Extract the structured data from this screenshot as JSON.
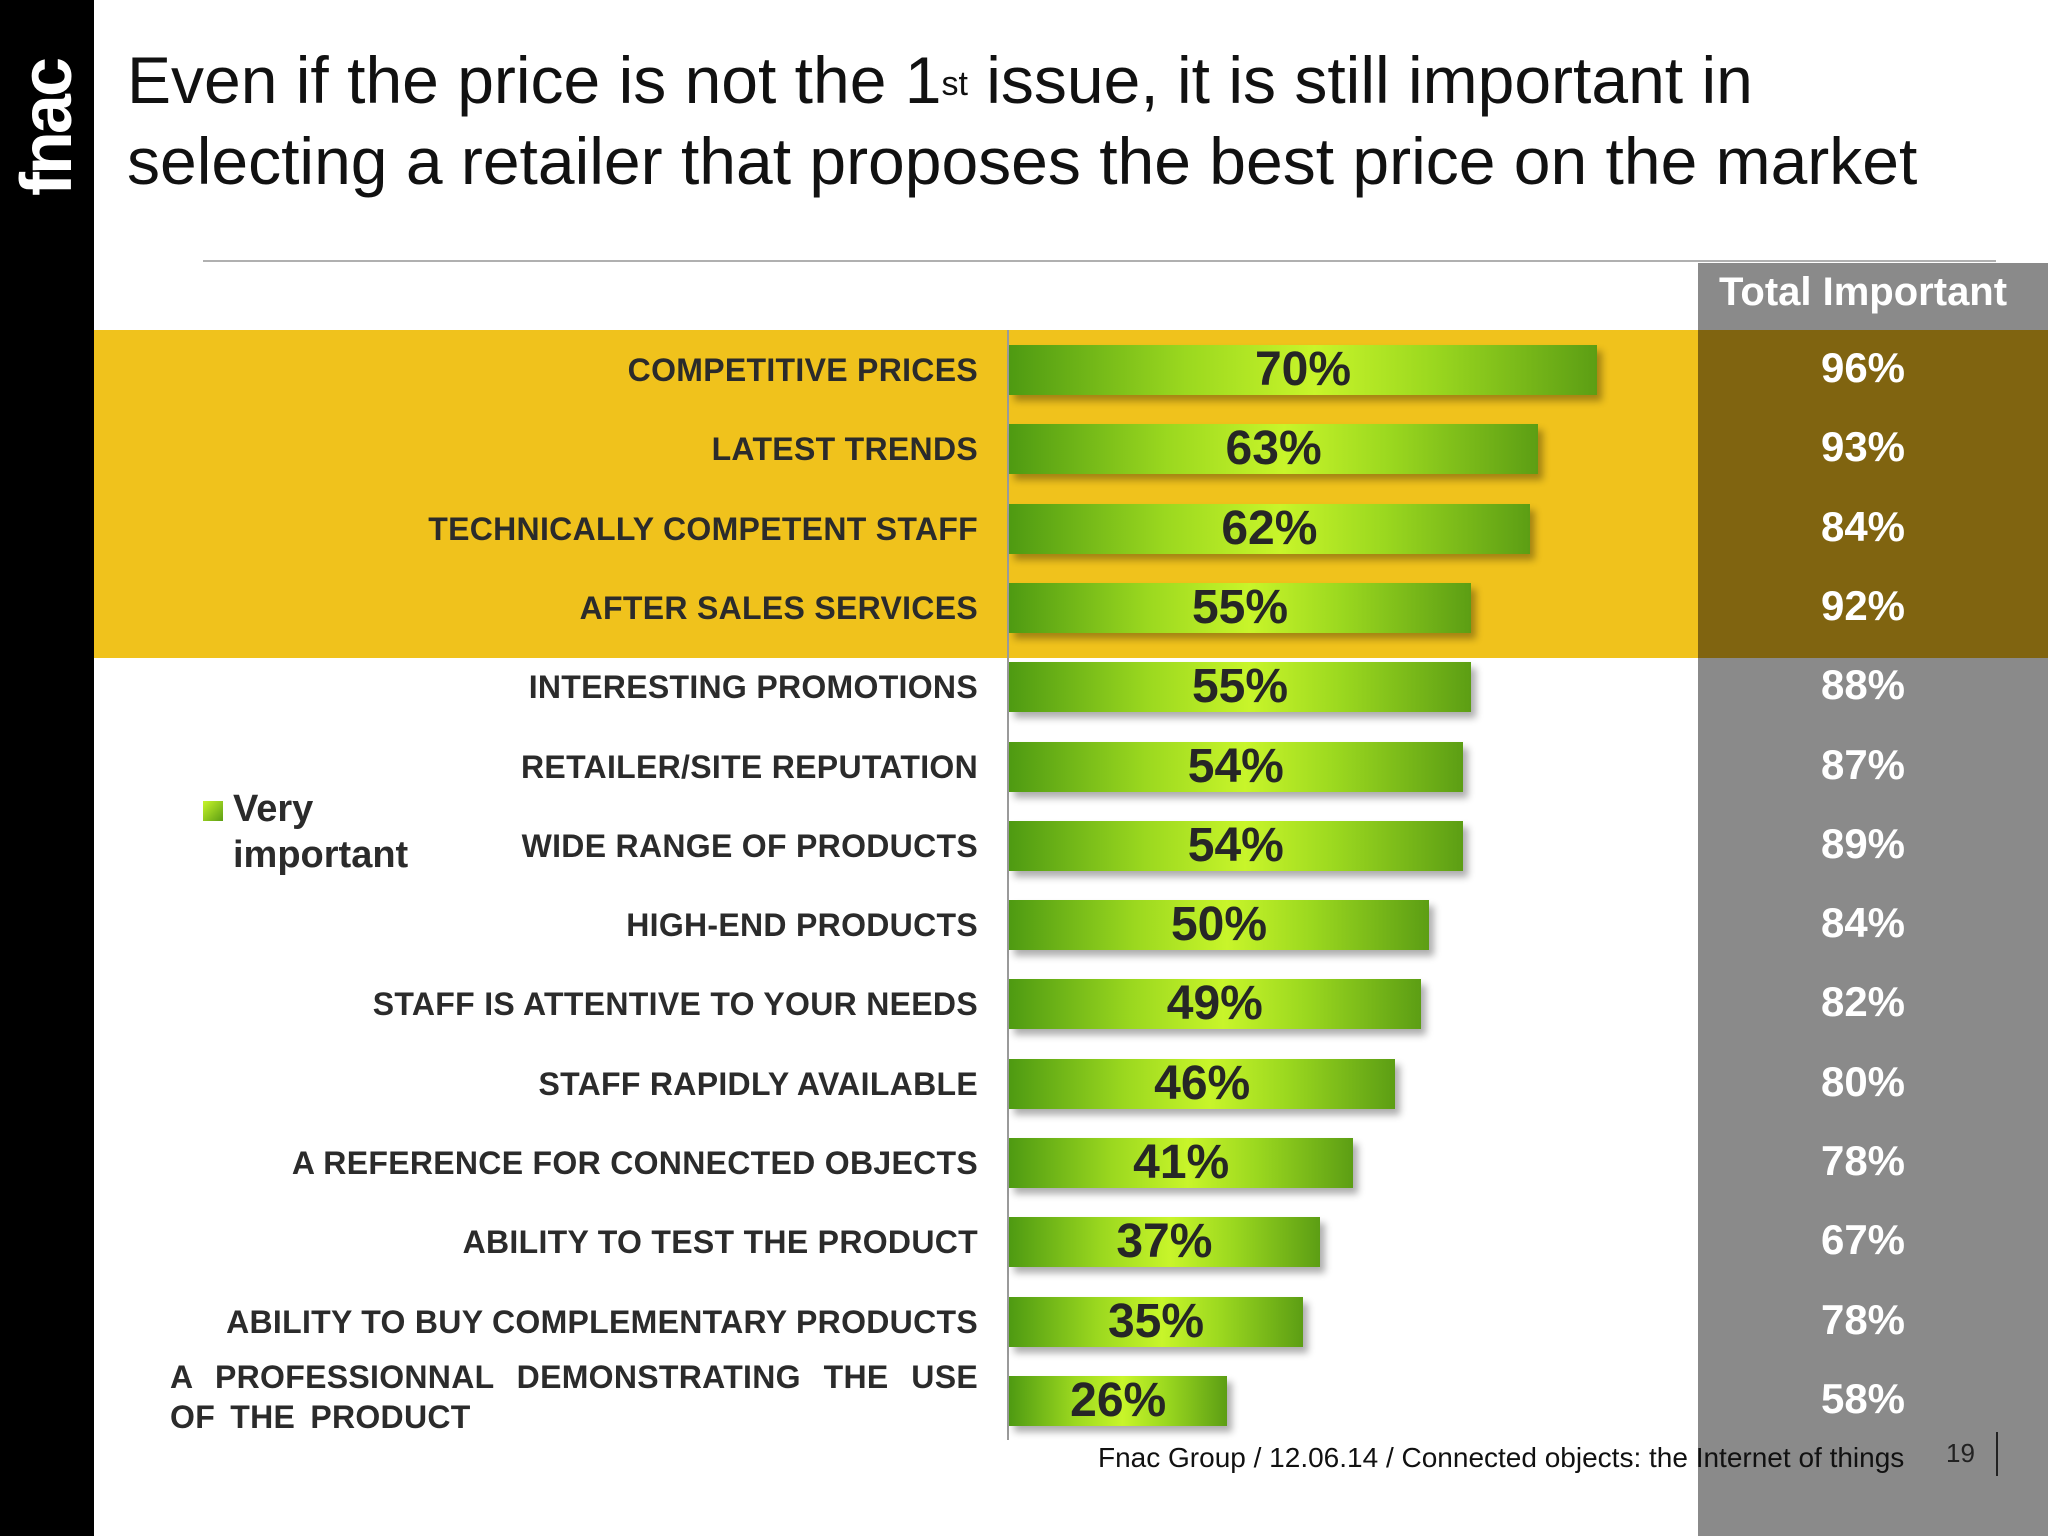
{
  "logo": "fnac",
  "title": {
    "before": "Even if the price is not the 1",
    "sup": "st",
    "after": " issue, it is still important in selecting a retailer that proposes the best price on the market"
  },
  "total_header": "Total Important",
  "legend": {
    "label": "Very important"
  },
  "footer": "Fnac Group / 12.06.14 / Connected objects: the Internet of things",
  "page_number": "19",
  "colors": {
    "highlight_band": "#f0c21c",
    "total_column": "#8a8a8a",
    "total_column_highlight": "#806410",
    "bar_green": "#9bd81f",
    "sidebar": "#000000"
  },
  "chart_data": {
    "type": "bar",
    "orientation": "horizontal",
    "categories": [
      "COMPETITIVE PRICES",
      "LATEST TRENDS",
      "TECHNICALLY COMPETENT STAFF",
      "AFTER SALES SERVICES",
      "INTERESTING PROMOTIONS",
      "RETAILER/SITE REPUTATION",
      "WIDE RANGE OF PRODUCTS",
      "HIGH-END PRODUCTS",
      "STAFF IS ATTENTIVE TO YOUR NEEDS",
      "STAFF RAPIDLY AVAILABLE",
      "A REFERENCE FOR CONNECTED OBJECTS",
      "ABILITY TO TEST THE PRODUCT",
      "ABILITY TO BUY COMPLEMENTARY PRODUCTS",
      "A PROFESSIONNAL DEMONSTRATING THE USE OF THE PRODUCT"
    ],
    "series": [
      {
        "name": "Very important",
        "values": [
          70,
          63,
          62,
          55,
          55,
          54,
          54,
          50,
          49,
          46,
          41,
          37,
          35,
          26
        ]
      }
    ],
    "total_important": [
      96,
      93,
      84,
      92,
      88,
      87,
      89,
      84,
      82,
      80,
      78,
      67,
      78,
      58
    ],
    "highlighted_categories": 4,
    "unit": "%",
    "xlim": [
      0,
      100
    ]
  }
}
